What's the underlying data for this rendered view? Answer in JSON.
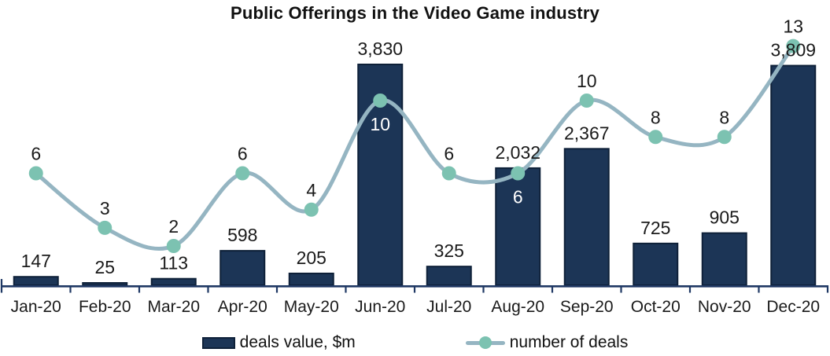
{
  "chart_data": {
    "type": "combo-bar-line",
    "title": "Public Offerings in the Video Game industry",
    "categories": [
      "Jan-20",
      "Feb-20",
      "Mar-20",
      "Apr-20",
      "May-20",
      "Jun-20",
      "Jul-20",
      "Aug-20",
      "Sep-20",
      "Oct-20",
      "Nov-20",
      "Dec-20"
    ],
    "series": [
      {
        "name": "deals value, $m",
        "type": "bar",
        "values": [
          147,
          25,
          113,
          598,
          205,
          3830,
          325,
          2032,
          2367,
          725,
          905,
          3809
        ]
      },
      {
        "name": "number of deals",
        "type": "line",
        "values": [
          6,
          3,
          2,
          6,
          4,
          10,
          6,
          6,
          10,
          8,
          8,
          13
        ]
      }
    ],
    "legend": [
      {
        "label": "deals value, $m"
      },
      {
        "label": "number of deals"
      }
    ],
    "colors": {
      "bar_fill": "#1c3556",
      "bar_border": "#0e2038",
      "line": "#95b5c2",
      "marker": "#7cc2b1",
      "axis": "#1f3864",
      "label": "#1a1a1a",
      "inside_label": "#ffffff"
    },
    "layout_hints": {
      "grid": false,
      "y_axis_visible": false,
      "legend_position": "bottom",
      "value_label_format": "thousands-comma",
      "line_labels_below_in_white": [
        "Jun-20",
        "Aug-20"
      ],
      "line_smoothing": true
    }
  }
}
